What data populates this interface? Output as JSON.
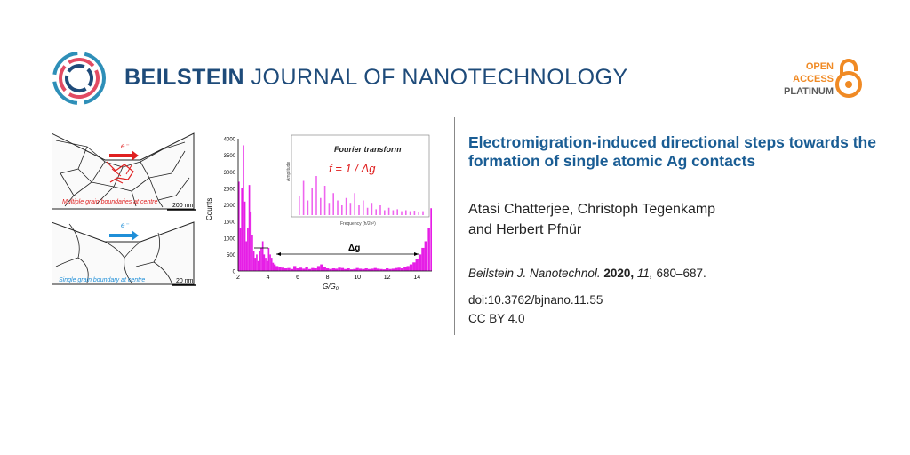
{
  "journal": {
    "bold": "BEILSTEIN",
    "rest": "JOURNAL OF NANOTECHNOLOGY"
  },
  "open_access": {
    "line1": "OPEN",
    "line2": "ACCESS",
    "line3": "PLATINUM"
  },
  "article": {
    "title": "Electromigration-induced directional steps towards the formation of single atomic Ag contacts",
    "authors_line1": "Atasi Chatterjee, Christoph Tegenkamp",
    "authors_line2": "and Herbert Pfnür",
    "citation_journal": "Beilstein J. Nanotechnol.",
    "citation_year": "2020,",
    "citation_volume": "11,",
    "citation_pages": "680–687.",
    "doi": "doi:10.3762/bjnano.11.55",
    "license": "CC BY 4.0"
  },
  "graphic": {
    "electron_label_top": "e⁻",
    "multi_caption": "Multiple grain boundaries at centre",
    "scale_top": "200 nm",
    "electron_label_bottom": "e⁻",
    "single_caption": "Single grain boundary at centre",
    "scale_bottom": "20 nm",
    "fourier_title": "Fourier transform",
    "fourier_formula": "f = 1 / Δg",
    "inset_xlabel": "Frequency (h/2e²)",
    "inset_ylabel": "Amplitude",
    "delta_label": "Δg"
  },
  "chart_data": {
    "type": "bar",
    "xlabel": "G/G₀",
    "ylabel": "Counts",
    "xlim": [
      2,
      15
    ],
    "ylim": [
      0,
      4000
    ],
    "x_ticks": [
      2,
      4,
      6,
      8,
      10,
      12,
      14
    ],
    "y_ticks": [
      0,
      500,
      1000,
      1500,
      2000,
      2500,
      3000,
      3500,
      4000
    ],
    "color": "#e61ee6",
    "series": [
      {
        "x": [
          2.05,
          2.15,
          2.25,
          2.35,
          2.45,
          2.55,
          2.65,
          2.75,
          2.85,
          2.95,
          3.05,
          3.15,
          3.25,
          3.35,
          3.45,
          3.55,
          3.65,
          3.75,
          3.85,
          3.95,
          4.05,
          4.15,
          4.25,
          4.35,
          4.45,
          4.6,
          4.8,
          5.0,
          5.2,
          5.4,
          5.6,
          5.8,
          6.0,
          6.2,
          6.4,
          6.6,
          6.8,
          7.0,
          7.2,
          7.4,
          7.6,
          7.8,
          8.0,
          8.2,
          8.4,
          8.6,
          8.8,
          9.0,
          9.2,
          9.4,
          9.6,
          9.8,
          10.0,
          10.2,
          10.4,
          10.6,
          10.8,
          11.0,
          11.2,
          11.4,
          11.6,
          11.8,
          12.0,
          12.2,
          12.4,
          12.6,
          12.8,
          13.0,
          13.2,
          13.4,
          13.6,
          13.8,
          14.0,
          14.2,
          14.4,
          14.6,
          14.8,
          14.95
        ],
        "values": [
          2700,
          1300,
          2500,
          3800,
          2100,
          900,
          1300,
          2600,
          1800,
          1100,
          600,
          400,
          500,
          300,
          600,
          700,
          900,
          500,
          400,
          300,
          700,
          500,
          400,
          250,
          200,
          150,
          120,
          100,
          80,
          90,
          60,
          150,
          80,
          100,
          70,
          120,
          60,
          90,
          80,
          150,
          200,
          130,
          80,
          60,
          80,
          70,
          100,
          90,
          60,
          80,
          50,
          60,
          90,
          70,
          60,
          80,
          60,
          70,
          90,
          70,
          60,
          50,
          80,
          60,
          70,
          90,
          100,
          80,
          120,
          150,
          200,
          260,
          350,
          500,
          700,
          900,
          1300,
          1900
        ]
      }
    ]
  }
}
